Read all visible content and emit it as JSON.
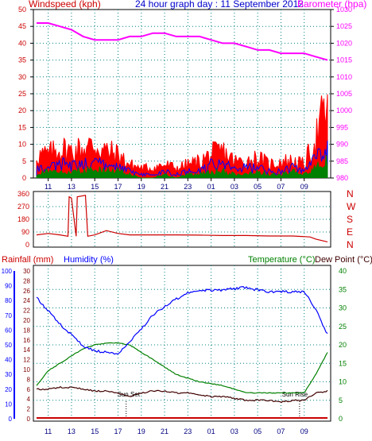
{
  "colors": {
    "wind_red": "#ff0000",
    "gust_red": "#ff0000",
    "wind_blue": "#0000ff",
    "wind_green": "#008000",
    "barometer": "#ff00ff",
    "direction": "#cc0000",
    "humidity": "#0000ff",
    "temperature": "#008000",
    "dewpoint": "#400000",
    "rainfall": "#cc0000",
    "left_axis": "#cc0000",
    "right_axis": "#ff00ff",
    "grid": "#008080",
    "title": "#0000cc"
  },
  "chart_data": [
    {
      "id": "wind",
      "type": "line",
      "title": "24 hour graph day : 11 September 2012",
      "ylabel_left": "Windspeed (kph)",
      "ylabel_right": "Barometer (hpa)",
      "x_ticks": [
        "11",
        "13",
        "15",
        "17",
        "19",
        "21",
        "23",
        "01",
        "03",
        "05",
        "07",
        "09"
      ],
      "y_left_ticks": [
        0,
        5,
        10,
        15,
        20,
        25,
        30,
        35,
        40,
        45,
        50
      ],
      "y_left_lim": [
        0,
        50
      ],
      "y_right_ticks": [
        980,
        985,
        990,
        995,
        1000,
        1005,
        1010,
        1015,
        1020,
        1025,
        1030
      ],
      "y_right_lim": [
        980,
        1030
      ],
      "hours": [
        10,
        11,
        12,
        13,
        14,
        15,
        16,
        17,
        18,
        19,
        20,
        21,
        22,
        23,
        24,
        25,
        26,
        27,
        28,
        29,
        30,
        31,
        32,
        33,
        34,
        35
      ],
      "series": [
        {
          "name": "Barometer",
          "axis": "right",
          "values": [
            1026,
            1026,
            1025,
            1024,
            1022,
            1021,
            1021,
            1021,
            1022,
            1022,
            1023,
            1023,
            1022,
            1022,
            1022,
            1021,
            1020,
            1020,
            1019,
            1018,
            1018,
            1017,
            1017,
            1017,
            1016,
            1015
          ]
        },
        {
          "name": "Gust",
          "axis": "left",
          "kind": "spiky",
          "values": [
            7,
            7,
            9,
            8,
            9,
            10,
            8,
            7,
            4,
            3,
            3,
            4,
            3,
            4,
            5,
            7,
            8,
            5,
            5,
            6,
            4,
            5,
            5,
            4,
            12,
            22
          ]
        },
        {
          "name": "Average",
          "axis": "left",
          "kind": "spiky",
          "values": [
            3,
            3,
            4,
            4,
            4,
            5,
            4,
            3,
            2,
            1,
            1,
            2,
            1,
            2,
            2,
            4,
            4,
            3,
            3,
            3,
            2,
            2,
            3,
            2,
            6,
            9
          ]
        },
        {
          "name": "Low",
          "axis": "left",
          "kind": "spiky",
          "values": [
            1,
            2,
            2,
            2,
            2,
            3,
            2,
            2,
            1,
            0,
            0,
            1,
            0,
            1,
            1,
            2,
            2,
            1,
            1,
            2,
            1,
            1,
            2,
            1,
            3,
            5
          ]
        }
      ]
    },
    {
      "id": "direction",
      "type": "line",
      "y_ticks": [
        0,
        90,
        180,
        270,
        360
      ],
      "y_lim": [
        0,
        360
      ],
      "compass": [
        "N",
        "W",
        "S",
        "E",
        "N"
      ],
      "hours": [
        10,
        11,
        12,
        12.7,
        12.8,
        13,
        13.4,
        13.5,
        14.2,
        14.4,
        15,
        16,
        17,
        18,
        20,
        22,
        24,
        26,
        28,
        30,
        32,
        33.5,
        34,
        34.5,
        35
      ],
      "values": [
        70,
        80,
        70,
        60,
        340,
        330,
        60,
        340,
        350,
        60,
        70,
        100,
        80,
        70,
        70,
        70,
        68,
        65,
        65,
        62,
        62,
        55,
        40,
        30,
        20
      ]
    },
    {
      "id": "bottom",
      "type": "line",
      "ylabel_left": "Rainfall (mm)",
      "ylabel_left2": "Humidity (%)",
      "ylabel_right": "Temperature (°C)",
      "ylabel_right2": "Dew Point (°C)",
      "y_hum_ticks": [
        0,
        10,
        20,
        30,
        40,
        50,
        60,
        70,
        80,
        90,
        100
      ],
      "y_rain_ticks": [
        0,
        2,
        4,
        6,
        8,
        10,
        12,
        14,
        16,
        18,
        20,
        22,
        24,
        26,
        28,
        30
      ],
      "y_temp_ticks": [
        0,
        5,
        10,
        15,
        20,
        25,
        30,
        35,
        40
      ],
      "y_temp_lim": [
        0,
        40
      ],
      "x_ticks": [
        "11",
        "13",
        "15",
        "17",
        "19",
        "21",
        "23",
        "01",
        "03",
        "05",
        "07",
        "09"
      ],
      "annotations": [
        "Sun Set",
        "Sun Rise"
      ],
      "hours": [
        10,
        11,
        12,
        13,
        14,
        15,
        16,
        17,
        18,
        19,
        20,
        21,
        22,
        23,
        24,
        25,
        26,
        27,
        28,
        29,
        30,
        31,
        32,
        33,
        34,
        35
      ],
      "series": [
        {
          "name": "Humidity",
          "scale": "humidity",
          "values": [
            82,
            73,
            64,
            57,
            49,
            46,
            45,
            44,
            52,
            61,
            70,
            76,
            81,
            85,
            87,
            87,
            87,
            88,
            89,
            87,
            86,
            86,
            86,
            86,
            74,
            57
          ]
        },
        {
          "name": "Temperature",
          "scale": "temp",
          "values": [
            9,
            13,
            15,
            17,
            19,
            20,
            20.5,
            20.5,
            20,
            18,
            16,
            14,
            12,
            11,
            10,
            9.5,
            9,
            8,
            7,
            7,
            7,
            7,
            7,
            7,
            12,
            18
          ]
        },
        {
          "name": "Dew Point",
          "scale": "temp",
          "values": [
            8,
            8,
            8.5,
            8.5,
            8,
            7.5,
            7.5,
            7,
            6,
            7,
            7.5,
            7.5,
            7,
            7,
            6.5,
            6,
            6,
            5.5,
            5,
            5,
            5,
            4.5,
            5,
            5,
            7,
            7.5
          ]
        },
        {
          "name": "Rainfall",
          "scale": "rain",
          "values": [
            0,
            0,
            0,
            0,
            0,
            0,
            0,
            0,
            0,
            0,
            0,
            0,
            0,
            0,
            0,
            0,
            0,
            0,
            0,
            0,
            0,
            0,
            0,
            0,
            0,
            0
          ]
        }
      ]
    }
  ]
}
